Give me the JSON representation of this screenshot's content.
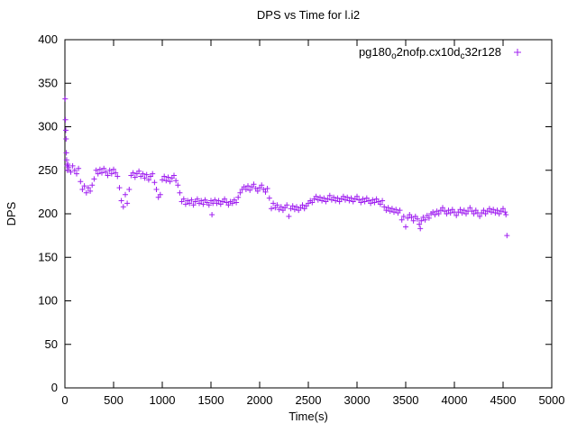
{
  "title": "DPS vs Time for l.i2",
  "xlabel": "Time(s)",
  "ylabel": "DPS",
  "legend": {
    "prefix": "pg180",
    "sub1": "o",
    "mid": "2nofp.cx10d",
    "sub2": "c",
    "suffix": "32r128"
  },
  "colors": {
    "marker": "#a020f0",
    "axis": "#000000",
    "background": "#ffffff"
  },
  "chart_data": {
    "type": "scatter",
    "title": "DPS vs Time for l.i2",
    "xlabel": "Time(s)",
    "ylabel": "DPS",
    "xlim": [
      0,
      5000
    ],
    "ylim": [
      0,
      400
    ],
    "xticks": [
      0,
      500,
      1000,
      1500,
      2000,
      2500,
      3000,
      3500,
      4000,
      4500,
      5000
    ],
    "yticks": [
      0,
      50,
      100,
      150,
      200,
      250,
      300,
      350,
      400
    ],
    "grid": false,
    "legend_position": "top-right-inside",
    "series": [
      {
        "name": "pg180_o2nofp.cx10d_c32r128",
        "marker": "plus",
        "color": "#a020f0",
        "points": [
          [
            3,
            332
          ],
          [
            6,
            308
          ],
          [
            9,
            296
          ],
          [
            12,
            286
          ],
          [
            15,
            270
          ],
          [
            18,
            262
          ],
          [
            22,
            255
          ],
          [
            26,
            250
          ],
          [
            30,
            257
          ],
          [
            40,
            253
          ],
          [
            60,
            248
          ],
          [
            80,
            255
          ],
          [
            100,
            250
          ],
          [
            120,
            246
          ],
          [
            140,
            252
          ],
          [
            160,
            237
          ],
          [
            180,
            228
          ],
          [
            200,
            232
          ],
          [
            220,
            224
          ],
          [
            240,
            230
          ],
          [
            260,
            226
          ],
          [
            280,
            233
          ],
          [
            300,
            240
          ],
          [
            320,
            250
          ],
          [
            340,
            246
          ],
          [
            360,
            251
          ],
          [
            380,
            247
          ],
          [
            400,
            252
          ],
          [
            420,
            248
          ],
          [
            440,
            244
          ],
          [
            460,
            250
          ],
          [
            480,
            246
          ],
          [
            500,
            251
          ],
          [
            520,
            247
          ],
          [
            540,
            243
          ],
          [
            560,
            230
          ],
          [
            580,
            215
          ],
          [
            600,
            208
          ],
          [
            620,
            222
          ],
          [
            640,
            212
          ],
          [
            660,
            228
          ],
          [
            680,
            244
          ],
          [
            700,
            247
          ],
          [
            720,
            242
          ],
          [
            740,
            246
          ],
          [
            760,
            249
          ],
          [
            780,
            243
          ],
          [
            800,
            246
          ],
          [
            820,
            241
          ],
          [
            840,
            245
          ],
          [
            860,
            239
          ],
          [
            880,
            243
          ],
          [
            900,
            246
          ],
          [
            920,
            236
          ],
          [
            940,
            228
          ],
          [
            960,
            219
          ],
          [
            980,
            222
          ],
          [
            1000,
            239
          ],
          [
            1020,
            243
          ],
          [
            1040,
            238
          ],
          [
            1060,
            242
          ],
          [
            1080,
            237
          ],
          [
            1100,
            241
          ],
          [
            1120,
            244
          ],
          [
            1140,
            238
          ],
          [
            1160,
            233
          ],
          [
            1180,
            224
          ],
          [
            1200,
            214
          ],
          [
            1220,
            217
          ],
          [
            1240,
            211
          ],
          [
            1260,
            215
          ],
          [
            1280,
            212
          ],
          [
            1300,
            216
          ],
          [
            1320,
            210
          ],
          [
            1340,
            214
          ],
          [
            1360,
            217
          ],
          [
            1380,
            212
          ],
          [
            1400,
            215
          ],
          [
            1420,
            211
          ],
          [
            1440,
            216
          ],
          [
            1460,
            213
          ],
          [
            1480,
            210
          ],
          [
            1500,
            215
          ],
          [
            1510,
            199
          ],
          [
            1520,
            212
          ],
          [
            1540,
            216
          ],
          [
            1560,
            212
          ],
          [
            1580,
            215
          ],
          [
            1600,
            211
          ],
          [
            1620,
            214
          ],
          [
            1640,
            217
          ],
          [
            1660,
            213
          ],
          [
            1680,
            210
          ],
          [
            1700,
            214
          ],
          [
            1720,
            212
          ],
          [
            1740,
            216
          ],
          [
            1760,
            213
          ],
          [
            1780,
            219
          ],
          [
            1800,
            224
          ],
          [
            1820,
            228
          ],
          [
            1840,
            231
          ],
          [
            1860,
            228
          ],
          [
            1880,
            232
          ],
          [
            1900,
            227
          ],
          [
            1920,
            231
          ],
          [
            1940,
            234
          ],
          [
            1960,
            229
          ],
          [
            1980,
            226
          ],
          [
            2000,
            230
          ],
          [
            2020,
            233
          ],
          [
            2040,
            228
          ],
          [
            2060,
            225
          ],
          [
            2080,
            229
          ],
          [
            2100,
            218
          ],
          [
            2120,
            206
          ],
          [
            2140,
            212
          ],
          [
            2160,
            207
          ],
          [
            2180,
            210
          ],
          [
            2200,
            205
          ],
          [
            2220,
            208
          ],
          [
            2240,
            204
          ],
          [
            2260,
            207
          ],
          [
            2280,
            210
          ],
          [
            2300,
            197
          ],
          [
            2320,
            206
          ],
          [
            2340,
            209
          ],
          [
            2360,
            205
          ],
          [
            2380,
            208
          ],
          [
            2400,
            204
          ],
          [
            2420,
            207
          ],
          [
            2440,
            210
          ],
          [
            2460,
            206
          ],
          [
            2480,
            209
          ],
          [
            2500,
            212
          ],
          [
            2520,
            215
          ],
          [
            2540,
            213
          ],
          [
            2560,
            217
          ],
          [
            2580,
            220
          ],
          [
            2600,
            216
          ],
          [
            2620,
            219
          ],
          [
            2640,
            215
          ],
          [
            2660,
            218
          ],
          [
            2680,
            214
          ],
          [
            2700,
            217
          ],
          [
            2720,
            221
          ],
          [
            2740,
            216
          ],
          [
            2760,
            219
          ],
          [
            2780,
            215
          ],
          [
            2800,
            218
          ],
          [
            2820,
            214
          ],
          [
            2840,
            217
          ],
          [
            2860,
            220
          ],
          [
            2880,
            216
          ],
          [
            2900,
            219
          ],
          [
            2920,
            215
          ],
          [
            2940,
            218
          ],
          [
            2960,
            214
          ],
          [
            2980,
            217
          ],
          [
            3000,
            220
          ],
          [
            3020,
            216
          ],
          [
            3040,
            213
          ],
          [
            3060,
            217
          ],
          [
            3080,
            214
          ],
          [
            3100,
            218
          ],
          [
            3120,
            215
          ],
          [
            3140,
            212
          ],
          [
            3160,
            216
          ],
          [
            3180,
            213
          ],
          [
            3200,
            217
          ],
          [
            3220,
            214
          ],
          [
            3240,
            211
          ],
          [
            3260,
            215
          ],
          [
            3280,
            208
          ],
          [
            3300,
            204
          ],
          [
            3320,
            207
          ],
          [
            3340,
            203
          ],
          [
            3360,
            206
          ],
          [
            3380,
            202
          ],
          [
            3400,
            205
          ],
          [
            3420,
            201
          ],
          [
            3440,
            204
          ],
          [
            3460,
            193
          ],
          [
            3480,
            197
          ],
          [
            3500,
            185
          ],
          [
            3520,
            195
          ],
          [
            3540,
            199
          ],
          [
            3560,
            196
          ],
          [
            3580,
            192
          ],
          [
            3600,
            197
          ],
          [
            3620,
            194
          ],
          [
            3640,
            188
          ],
          [
            3650,
            183
          ],
          [
            3660,
            192
          ],
          [
            3680,
            196
          ],
          [
            3700,
            193
          ],
          [
            3720,
            198
          ],
          [
            3740,
            195
          ],
          [
            3760,
            200
          ],
          [
            3780,
            202
          ],
          [
            3800,
            199
          ],
          [
            3820,
            203
          ],
          [
            3840,
            200
          ],
          [
            3860,
            204
          ],
          [
            3880,
            207
          ],
          [
            3900,
            203
          ],
          [
            3920,
            200
          ],
          [
            3940,
            204
          ],
          [
            3960,
            201
          ],
          [
            3980,
            205
          ],
          [
            4000,
            202
          ],
          [
            4020,
            198
          ],
          [
            4040,
            202
          ],
          [
            4060,
            205
          ],
          [
            4080,
            201
          ],
          [
            4100,
            204
          ],
          [
            4120,
            200
          ],
          [
            4140,
            203
          ],
          [
            4160,
            207
          ],
          [
            4180,
            203
          ],
          [
            4200,
            200
          ],
          [
            4220,
            204
          ],
          [
            4240,
            201
          ],
          [
            4260,
            197
          ],
          [
            4280,
            201
          ],
          [
            4300,
            204
          ],
          [
            4320,
            200
          ],
          [
            4340,
            203
          ],
          [
            4360,
            206
          ],
          [
            4380,
            202
          ],
          [
            4400,
            205
          ],
          [
            4420,
            201
          ],
          [
            4440,
            204
          ],
          [
            4460,
            200
          ],
          [
            4480,
            203
          ],
          [
            4500,
            206
          ],
          [
            4520,
            202
          ],
          [
            4530,
            199
          ],
          [
            4540,
            175
          ]
        ]
      }
    ]
  }
}
